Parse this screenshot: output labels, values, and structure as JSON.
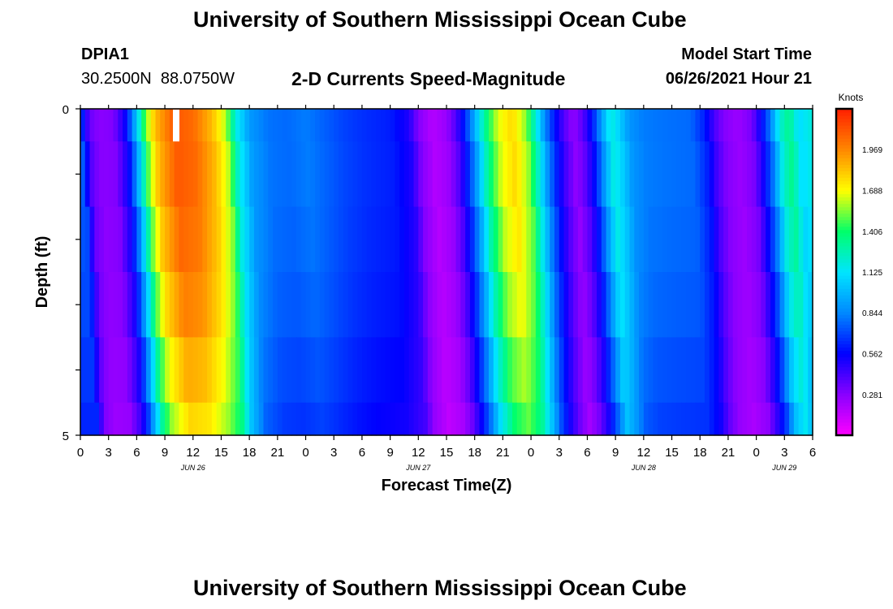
{
  "page": {
    "title_top": "University of Southern Mississippi Ocean Cube",
    "title_bottom": "University of Southern Mississippi Ocean Cube",
    "station_id": "DPIA1",
    "coords": "30.2500N  88.0750W",
    "model_start_label": "Model Start Time",
    "model_start_value": "06/26/2021 Hour 21"
  },
  "colors": {
    "palette": [
      "#ff00ff",
      "#8a00ff",
      "#0000ff",
      "#0088ff",
      "#00e5ff",
      "#00ff6a",
      "#ffff00",
      "#ff8800",
      "#ff2000"
    ]
  },
  "chart_data": {
    "type": "heatmap",
    "title": "2-D Currents Speed-Magnitude",
    "xlabel": "Forecast Time(Z)",
    "ylabel": "Depth (ft)",
    "colorbar_label": "Knots",
    "colorbar_ticks": [
      "1.969",
      "1.688",
      "1.406",
      "1.125",
      "0.844",
      "0.562",
      "0.281"
    ],
    "color_range": [
      0,
      2.25
    ],
    "xlim": [
      0,
      78
    ],
    "ylim": [
      0,
      5
    ],
    "x_tick_labels": [
      "0",
      "3",
      "6",
      "9",
      "12",
      "15",
      "18",
      "21",
      "0",
      "3",
      "6",
      "9",
      "12",
      "15",
      "18",
      "21",
      "0",
      "3",
      "6",
      "9",
      "12",
      "15",
      "18",
      "21",
      "0",
      "3",
      "6"
    ],
    "date_labels": [
      {
        "hour": 12,
        "label": "JUN 26"
      },
      {
        "hour": 36,
        "label": "JUN 27"
      },
      {
        "hour": 60,
        "label": "JUN 28"
      },
      {
        "hour": 75,
        "label": "JUN 29"
      }
    ],
    "y_tick_labels": [
      {
        "depth": 0,
        "label": "0"
      },
      {
        "depth": 5,
        "label": "5"
      }
    ],
    "marker_hour": 10.2,
    "depth_bands": [
      0,
      0.5,
      1.5,
      2.5,
      3.5,
      4.5,
      5
    ],
    "band_depth_factors": [
      1.0,
      1.0,
      0.98,
      0.95,
      0.9,
      0.85
    ],
    "surface_speed_profile": [
      [
        0,
        0.75
      ],
      [
        0.4,
        0.55
      ],
      [
        1,
        0.35
      ],
      [
        2,
        0.28
      ],
      [
        3.5,
        0.3
      ],
      [
        4.8,
        0.55
      ],
      [
        5.6,
        0.85
      ],
      [
        6.4,
        1.25
      ],
      [
        7,
        1.55
      ],
      [
        8,
        1.85
      ],
      [
        10,
        2.1
      ],
      [
        12,
        2.05
      ],
      [
        14,
        1.85
      ],
      [
        15.5,
        1.6
      ],
      [
        16.5,
        1.2
      ],
      [
        18,
        0.9
      ],
      [
        20,
        0.8
      ],
      [
        22,
        0.78
      ],
      [
        24,
        0.82
      ],
      [
        26,
        0.76
      ],
      [
        28,
        0.7
      ],
      [
        30,
        0.66
      ],
      [
        33,
        0.62
      ],
      [
        35,
        0.5
      ],
      [
        36,
        0.3
      ],
      [
        37.5,
        0.18
      ],
      [
        39,
        0.25
      ],
      [
        40,
        0.4
      ],
      [
        41,
        0.65
      ],
      [
        42,
        0.95
      ],
      [
        43,
        1.3
      ],
      [
        44.5,
        1.65
      ],
      [
        46,
        1.78
      ],
      [
        47.5,
        1.55
      ],
      [
        48.5,
        1.2
      ],
      [
        49.5,
        0.85
      ],
      [
        50.5,
        0.6
      ],
      [
        51.5,
        0.4
      ],
      [
        52.5,
        0.26
      ],
      [
        53.5,
        0.38
      ],
      [
        54.5,
        0.6
      ],
      [
        55.5,
        0.9
      ],
      [
        56.5,
        1.2
      ],
      [
        57.5,
        1.05
      ],
      [
        58.5,
        0.88
      ],
      [
        60,
        0.82
      ],
      [
        62,
        0.8
      ],
      [
        65,
        0.78
      ],
      [
        66.5,
        0.62
      ],
      [
        67.5,
        0.42
      ],
      [
        68.5,
        0.3
      ],
      [
        70,
        0.24
      ],
      [
        71.5,
        0.32
      ],
      [
        72.5,
        0.55
      ],
      [
        73.5,
        0.82
      ],
      [
        74.5,
        1.2
      ],
      [
        75.5,
        1.35
      ],
      [
        76.5,
        1.1
      ],
      [
        78,
        1.2
      ]
    ]
  }
}
